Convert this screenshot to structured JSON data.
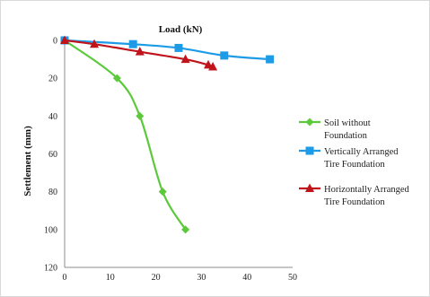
{
  "chart_data": {
    "type": "line",
    "title": "",
    "xlabel": "Load (kN)",
    "ylabel": "Settlement (mm)",
    "xlim": [
      0,
      50
    ],
    "ylim": [
      0,
      120
    ],
    "y_inverted": true,
    "x_ticks": [
      0,
      10,
      20,
      30,
      40,
      50
    ],
    "y_ticks": [
      0,
      20,
      40,
      60,
      80,
      100,
      120
    ],
    "grid": false,
    "legend_position": "right",
    "series": [
      {
        "name": "Soil without Foundation",
        "color": "#5cc93a",
        "marker": "diamond",
        "x": [
          0,
          11.5,
          16.5,
          21.5,
          26.5
        ],
        "y": [
          0,
          20,
          40,
          80,
          100
        ]
      },
      {
        "name": "Vertically Arranged Tire Foundation",
        "color": "#1e9be6",
        "marker": "square",
        "x": [
          0,
          15,
          25,
          35,
          45
        ],
        "y": [
          0,
          2,
          4,
          8,
          10
        ]
      },
      {
        "name": "Horizontally Arranged Tire Foundation",
        "color": "#c0141a",
        "marker": "triangle",
        "x": [
          0,
          6.5,
          16.5,
          26.5,
          31.5,
          32.5
        ],
        "y": [
          0,
          2,
          6,
          10,
          13,
          14
        ]
      }
    ],
    "legend": [
      {
        "line1": "Soil without",
        "line2": "Foundation"
      },
      {
        "line1": "Vertically Arranged",
        "line2": "Tire Foundation"
      },
      {
        "line1": "Horizontally Arranged",
        "line2": "Tire Foundation"
      }
    ]
  }
}
